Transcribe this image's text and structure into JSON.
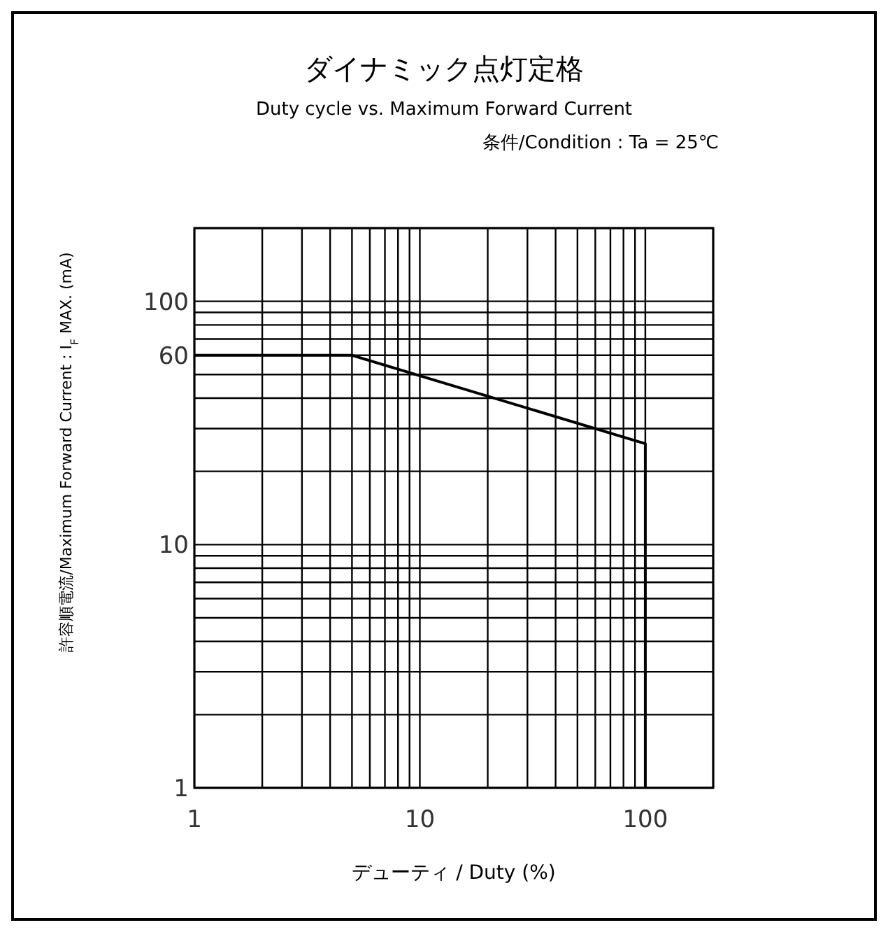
{
  "chart_data": {
    "type": "line",
    "title": "ダイナミック点灯定格",
    "subtitle": "Duty cycle vs. Maximum Forward Current",
    "annotations": [
      "条件/Condition : Ta = 25℃"
    ],
    "xlabel": "デューティ / Duty (%)",
    "ylabel": "許容順電流/Maximum Forward Current : I$_{F}$ MAX. (mA)",
    "log": "xy",
    "xlim": [
      1,
      200
    ],
    "ylim": [
      1,
      200
    ],
    "xticks": [
      1,
      10,
      100
    ],
    "yticks": [
      1,
      10,
      60,
      100
    ],
    "grid": true,
    "series": [
      {
        "color": "#000000",
        "x": [
          1,
          5,
          100,
          100
        ],
        "values": [
          60,
          60,
          26,
          1
        ]
      }
    ]
  }
}
